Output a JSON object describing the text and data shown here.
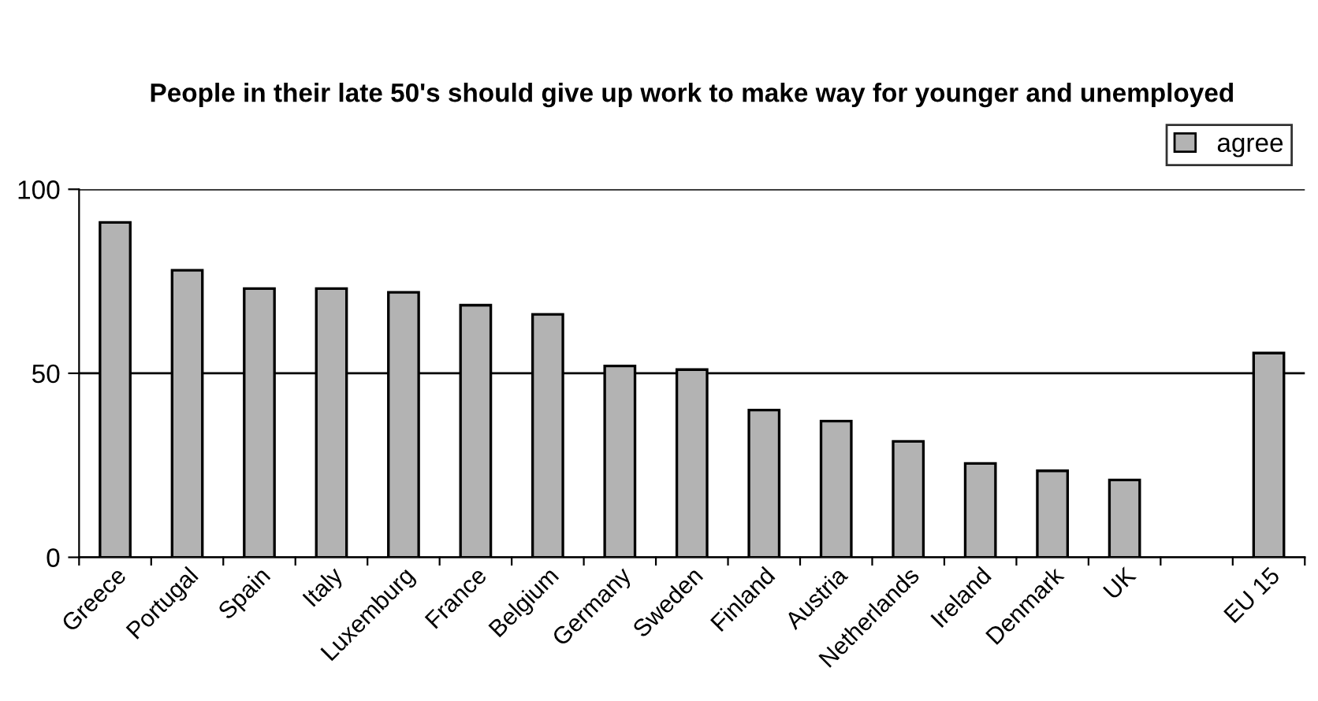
{
  "chart_data": {
    "type": "bar",
    "title": "People in their late 50's should give up work to make way for younger and unemployed",
    "categories": [
      "Greece",
      "Portugal",
      "Spain",
      "Italy",
      "Luxemburg",
      "France",
      "Belgium",
      "Germany",
      "Sweden",
      "Finland",
      "Austria",
      "Netherlands",
      "Ireland",
      "Denmark",
      "UK",
      null,
      "EU 15"
    ],
    "series": [
      {
        "name": "agree",
        "color": "#b3b3b3",
        "values": [
          91,
          78,
          73,
          73,
          72,
          68.5,
          66,
          52,
          51,
          40,
          37,
          31.5,
          25.5,
          23.5,
          21,
          null,
          55.5
        ]
      }
    ],
    "ylim": [
      0,
      100
    ],
    "yticks": [
      0,
      50,
      100
    ],
    "grid": "y",
    "legend": "top right"
  }
}
